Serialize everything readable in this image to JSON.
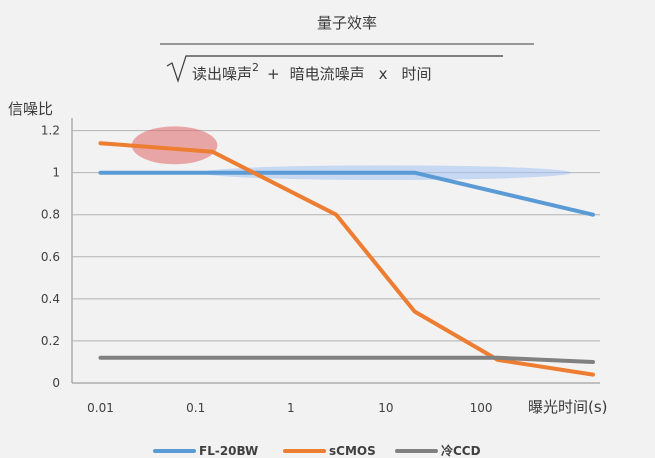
{
  "chart_data": {
    "type": "line",
    "title": {
      "numerator": "量子效率",
      "denominator_left": "读出噪声",
      "denominator_superscript": "2",
      "denominator_plus": "+",
      "denominator_right": "暗电流噪声",
      "denominator_x": "x",
      "denominator_time": "时间"
    },
    "ylabel": "信噪比",
    "xlabel": "曝光时间(s)",
    "x_tick_labels": [
      "0.01",
      "0.1",
      "1",
      "10",
      "100"
    ],
    "y_ticks": [
      0,
      0.2,
      0.4,
      0.6,
      0.8,
      1,
      1.2
    ],
    "y_tick_labels": [
      "0",
      "0.2",
      "0.4",
      "0.6",
      "0.8",
      "1",
      "1.2"
    ],
    "ylim": [
      0,
      1.26
    ],
    "grid": true,
    "legend_position": "bottom",
    "series": [
      {
        "name": "FL-20BW",
        "color": "#5b9bd5",
        "points": [
          [
            0.01,
            1.0
          ],
          [
            20,
            1.0
          ],
          [
            1500,
            0.8
          ]
        ]
      },
      {
        "name": "sCMOS",
        "color": "#ed7d31",
        "points": [
          [
            0.01,
            1.14
          ],
          [
            0.15,
            1.1
          ],
          [
            3,
            0.8
          ],
          [
            20,
            0.34
          ],
          [
            150,
            0.11
          ],
          [
            1500,
            0.04
          ]
        ]
      },
      {
        "name": "冷CCD",
        "color": "#808080",
        "points": [
          [
            0.01,
            0.12
          ],
          [
            150,
            0.12
          ],
          [
            1500,
            0.1
          ]
        ]
      }
    ],
    "highlights": [
      {
        "color": "#e06666",
        "opacity": 0.55,
        "cx_value": 0.06,
        "cy_value": 1.13,
        "rx_decades": 0.45,
        "ry_value": 0.09
      },
      {
        "color": "#a4c2f4",
        "opacity": 0.55,
        "cx_value": 10,
        "cy_value": 1.0,
        "rx_decades": 1.95,
        "ry_value": 0.035
      }
    ]
  }
}
